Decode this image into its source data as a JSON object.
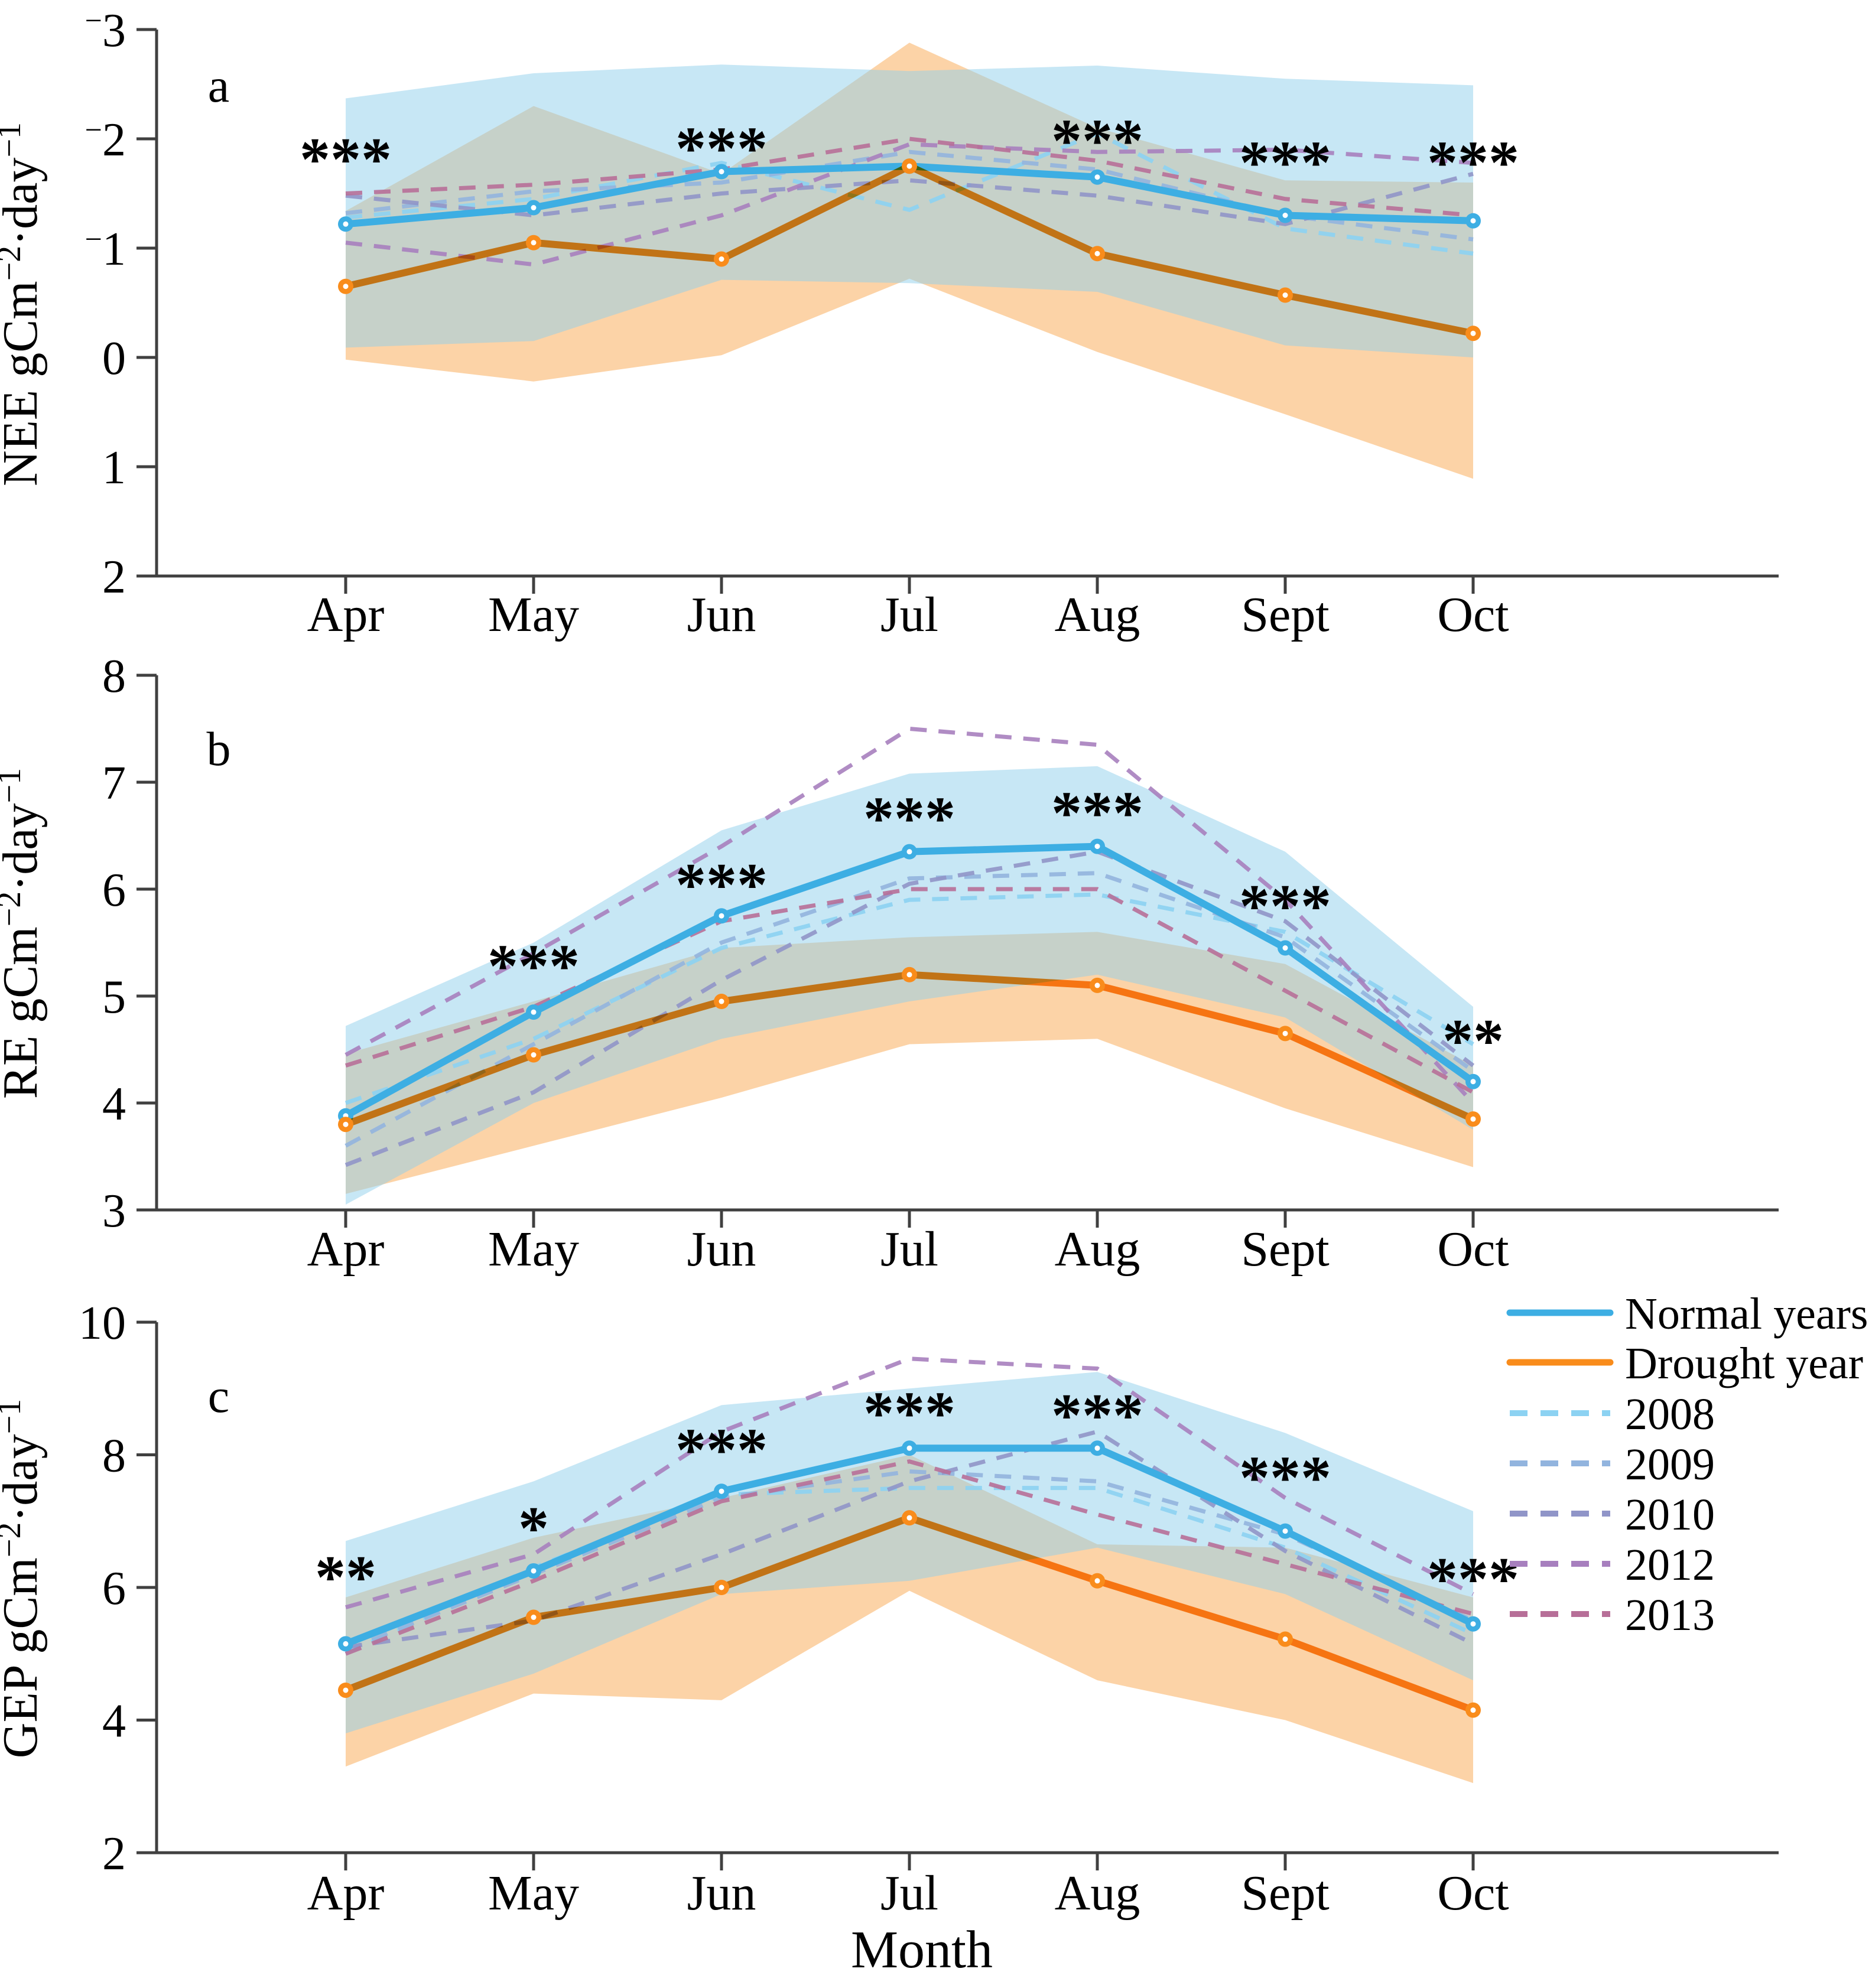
{
  "figure": {
    "x_title": "Month",
    "panel_letters": [
      "a",
      "b",
      "c"
    ]
  },
  "axes": {
    "x_title": "Month",
    "x_categories": [
      "Apr",
      "May",
      "Jun",
      "Jul",
      "Aug",
      "Sept",
      "Oct"
    ]
  },
  "colors": {
    "normal_line": "#3DAEE3",
    "drought_line": "#F98C1B",
    "normal_band": "#8FD0EC",
    "drought_band": "#F9A850",
    "axis": "#404040",
    "sig_text": "#000000"
  },
  "legend": {
    "items": [
      {
        "label": "Normal years",
        "color": "#3DAEE3",
        "dashed": false
      },
      {
        "label": "Drought year",
        "color": "#F98C1B",
        "dashed": false
      },
      {
        "label": "2008",
        "color": "#8CD2F2",
        "dashed": true
      },
      {
        "label": "2009",
        "color": "#92B4DE",
        "dashed": true
      },
      {
        "label": "2010",
        "color": "#9095C8",
        "dashed": true
      },
      {
        "label": "2012",
        "color": "#A77FBE",
        "dashed": true
      },
      {
        "label": "2013",
        "color": "#B76F98",
        "dashed": true
      }
    ]
  },
  "chart_data": [
    {
      "type": "line",
      "panel_label": "a",
      "ylabel": "NEE gCm−2·day−1",
      "ylabel_parts": {
        "prefix": "NEE gCm",
        "sup1": "−2",
        "mid": "·day",
        "sup2": "−1"
      },
      "ylim": [
        -3,
        2
      ],
      "y_axis_inverted_display": true,
      "yticks": [
        -3,
        -2,
        -1,
        0,
        1,
        2
      ],
      "series": [
        {
          "name": "Normal years",
          "values": [
            -1.22,
            -1.37,
            -1.7,
            -1.75,
            -1.65,
            -1.3,
            -1.25
          ]
        },
        {
          "name": "Drought year",
          "values": [
            -0.65,
            -1.05,
            -0.9,
            -1.75,
            -0.95,
            -0.57,
            -0.22
          ]
        }
      ],
      "bands": [
        {
          "name": "Drought year ±SD",
          "color_key": "drought_band",
          "upper": [
            -1.34,
            -2.3,
            -1.68,
            -2.88,
            -2.1,
            -1.62,
            -1.6
          ],
          "lower": [
            0.02,
            0.22,
            -0.02,
            -0.72,
            -0.05,
            0.52,
            1.11
          ]
        },
        {
          "name": "Normal years ±SD",
          "color_key": "normal_band",
          "upper": [
            -2.37,
            -2.6,
            -2.68,
            -2.62,
            -2.67,
            -2.55,
            -2.49
          ],
          "lower": [
            -0.09,
            -0.15,
            -0.71,
            -0.68,
            -0.6,
            -0.11,
            0.0
          ]
        }
      ],
      "year_series": [
        {
          "name": "2008",
          "values": [
            -1.28,
            -1.45,
            -1.78,
            -1.35,
            -2.05,
            -1.18,
            -0.95
          ]
        },
        {
          "name": "2009",
          "values": [
            -1.32,
            -1.52,
            -1.6,
            -1.88,
            -1.72,
            -1.3,
            -1.08
          ]
        },
        {
          "name": "2010",
          "values": [
            -1.48,
            -1.3,
            -1.5,
            -1.62,
            -1.48,
            -1.22,
            -1.68
          ]
        },
        {
          "name": "2012",
          "values": [
            -1.05,
            -0.85,
            -1.3,
            -1.95,
            -1.88,
            -1.9,
            -1.78
          ]
        },
        {
          "name": "2013",
          "values": [
            -1.5,
            -1.58,
            -1.72,
            -2.0,
            -1.8,
            -1.45,
            -1.3
          ]
        }
      ],
      "sig_markers": [
        {
          "month": "Apr",
          "label": "***",
          "y": -1.95
        },
        {
          "month": "Jun",
          "label": "***",
          "y": -2.05
        },
        {
          "month": "Aug",
          "label": "***",
          "y": -2.12
        },
        {
          "month": "Sept",
          "label": "***",
          "y": -1.92
        },
        {
          "month": "Oct",
          "label": "***",
          "y": -1.92
        }
      ]
    },
    {
      "type": "line",
      "panel_label": "b",
      "ylabel": "RE gCm−2·day−1",
      "ylabel_parts": {
        "prefix": "RE gCm",
        "sup1": "−2",
        "mid": "·day",
        "sup2": "−1"
      },
      "ylim": [
        8,
        3
      ],
      "yticks": [
        8,
        7,
        6,
        5,
        4,
        3
      ],
      "series": [
        {
          "name": "Normal years",
          "values": [
            3.88,
            4.85,
            5.75,
            6.35,
            6.4,
            5.45,
            4.2
          ]
        },
        {
          "name": "Drought year",
          "values": [
            3.8,
            4.45,
            4.95,
            5.2,
            5.1,
            4.65,
            3.85
          ]
        }
      ],
      "bands": [
        {
          "name": "Drought year ±SD",
          "color_key": "drought_band",
          "upper": [
            4.46,
            4.95,
            5.45,
            5.55,
            5.6,
            5.3,
            4.35
          ],
          "lower": [
            3.15,
            3.6,
            4.05,
            4.55,
            4.6,
            3.95,
            3.4
          ]
        },
        {
          "name": "Normal years ±SD",
          "color_key": "normal_band",
          "upper": [
            4.72,
            5.5,
            6.55,
            7.08,
            7.15,
            6.35,
            4.9
          ],
          "lower": [
            3.05,
            4.0,
            4.6,
            4.95,
            5.2,
            4.8,
            3.75
          ]
        }
      ],
      "year_series": [
        {
          "name": "2008",
          "values": [
            4.0,
            4.6,
            5.45,
            5.9,
            5.95,
            5.6,
            4.55
          ]
        },
        {
          "name": "2009",
          "values": [
            3.6,
            4.55,
            5.5,
            6.1,
            6.15,
            5.55,
            4.3
          ]
        },
        {
          "name": "2010",
          "values": [
            3.42,
            4.1,
            5.15,
            6.05,
            6.35,
            5.7,
            4.35
          ]
        },
        {
          "name": "2012",
          "values": [
            4.45,
            5.4,
            6.4,
            7.5,
            7.35,
            5.9,
            4.0
          ]
        },
        {
          "name": "2013",
          "values": [
            4.35,
            4.9,
            5.7,
            6.0,
            6.0,
            5.05,
            4.1
          ]
        }
      ],
      "sig_markers": [
        {
          "month": "May",
          "label": "***",
          "y": 5.42
        },
        {
          "month": "Jun",
          "label": "***",
          "y": 6.18
        },
        {
          "month": "Jul",
          "label": "***",
          "y": 6.8
        },
        {
          "month": "Aug",
          "label": "***",
          "y": 6.85
        },
        {
          "month": "Sept",
          "label": "***",
          "y": 5.98
        },
        {
          "month": "Oct",
          "label": "**",
          "y": 4.72
        }
      ]
    },
    {
      "type": "line",
      "panel_label": "c",
      "ylabel": "GEP gCm−2·day−1",
      "ylabel_parts": {
        "prefix": "GEP gCm",
        "sup1": "−2",
        "mid": "·day",
        "sup2": "−1"
      },
      "ylim": [
        10,
        2
      ],
      "yticks": [
        10,
        8,
        6,
        4,
        2
      ],
      "series": [
        {
          "name": "Normal years",
          "values": [
            5.15,
            6.25,
            7.45,
            8.1,
            8.1,
            6.85,
            5.45
          ]
        },
        {
          "name": "Drought year",
          "values": [
            4.45,
            5.55,
            6.0,
            7.05,
            6.1,
            5.22,
            4.15
          ]
        }
      ],
      "bands": [
        {
          "name": "Drought year ±SD",
          "color_key": "drought_band",
          "upper": [
            5.85,
            6.75,
            7.35,
            8.0,
            6.65,
            6.6,
            5.85
          ],
          "lower": [
            3.3,
            4.4,
            4.3,
            5.95,
            4.6,
            4.0,
            3.05
          ]
        },
        {
          "name": "Normal years ±SD",
          "color_key": "normal_band",
          "upper": [
            6.7,
            7.6,
            8.75,
            9.0,
            9.25,
            8.33,
            7.15
          ],
          "lower": [
            3.8,
            4.7,
            5.9,
            6.1,
            6.6,
            5.9,
            4.6
          ]
        }
      ],
      "year_series": [
        {
          "name": "2008",
          "values": [
            5.0,
            6.3,
            7.4,
            7.5,
            7.5,
            6.6,
            5.3
          ]
        },
        {
          "name": "2009",
          "values": [
            5.05,
            6.2,
            7.35,
            7.75,
            7.6,
            6.8,
            5.5
          ]
        },
        {
          "name": "2010",
          "values": [
            5.1,
            5.5,
            6.5,
            7.6,
            8.35,
            6.55,
            5.15
          ]
        },
        {
          "name": "2012",
          "values": [
            5.7,
            6.5,
            8.35,
            9.45,
            9.3,
            7.35,
            5.9
          ]
        },
        {
          "name": "2013",
          "values": [
            5.0,
            6.1,
            7.3,
            7.9,
            7.1,
            6.35,
            5.6
          ]
        }
      ],
      "sig_markers": [
        {
          "month": "Apr",
          "label": "**",
          "y": 6.38
        },
        {
          "month": "May",
          "label": "*",
          "y": 7.12
        },
        {
          "month": "Jun",
          "label": "***",
          "y": 8.3
        },
        {
          "month": "Jul",
          "label": "***",
          "y": 8.85
        },
        {
          "month": "Aug",
          "label": "***",
          "y": 8.82
        },
        {
          "month": "Sept",
          "label": "***",
          "y": 7.88
        },
        {
          "month": "Oct",
          "label": "***",
          "y": 6.35
        }
      ]
    }
  ]
}
